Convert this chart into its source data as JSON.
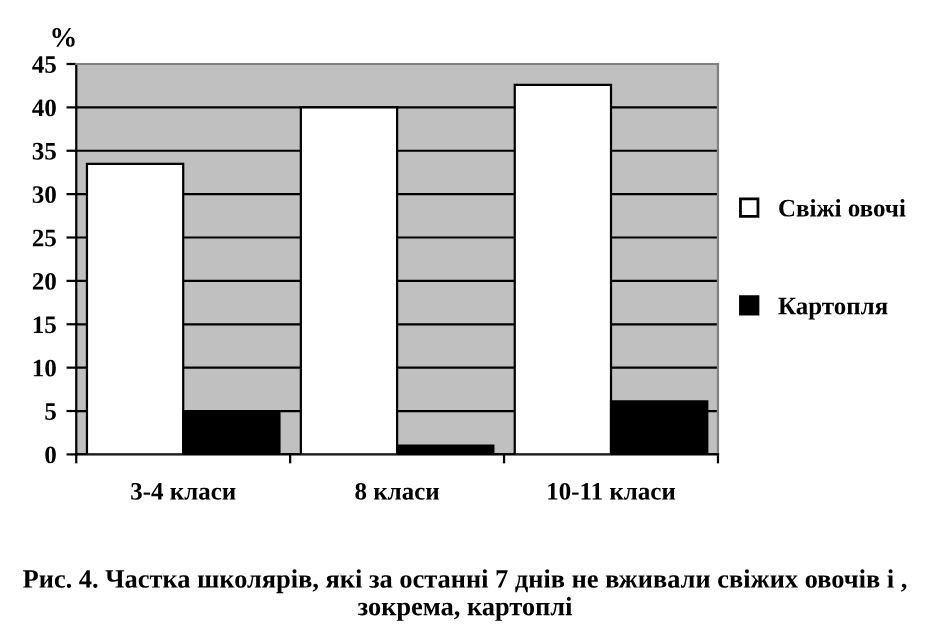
{
  "chart_data": {
    "type": "bar",
    "ylabel": "%",
    "categories": [
      "3-4 класи",
      "8 класи",
      "10-11 класи"
    ],
    "series": [
      {
        "name": "Свіжі овочі",
        "color": "#ffffff",
        "values": [
          33.5,
          40,
          42.6
        ]
      },
      {
        "name": "Картопля",
        "color": "#000000",
        "values": [
          5,
          1,
          6.1
        ]
      }
    ],
    "ylim": [
      0,
      45
    ],
    "yticks": [
      0,
      5,
      10,
      15,
      20,
      25,
      30,
      35,
      40,
      45
    ],
    "grid": "y",
    "legend": "right",
    "annotations": [
      "Рис. 4. Частка школярів, які за останні 7 днів не вживали свіжих овочів і , зокрема, картоплі"
    ]
  }
}
